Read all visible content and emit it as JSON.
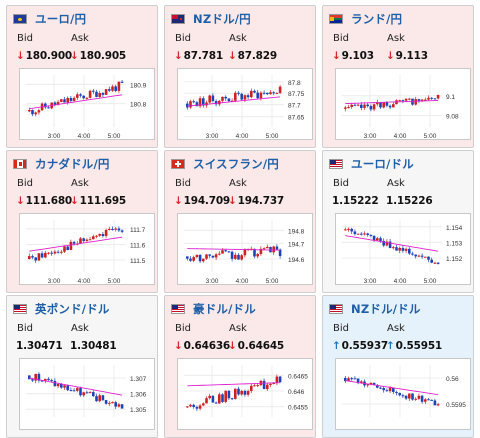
{
  "labels": {
    "bid": "Bid",
    "ask": "Ask"
  },
  "colors": {
    "up_candle": "#cc2222",
    "down_candle": "#1a44b8",
    "ma_line": "#e020d0",
    "down_arrow": "#d62828",
    "up_arrow": "#1e73be"
  },
  "cards": [
    {
      "pair": "ユーロ/円",
      "flag_icon": "eu-flag-icon",
      "trend": "down",
      "bid_arrow": "↓",
      "bid": "180.900",
      "ask_arrow": "↓",
      "ask": "180.905",
      "y_ticks": [
        "180.9",
        "180.8"
      ],
      "x_ticks": [
        "3:00",
        "4:00",
        "5:00"
      ]
    },
    {
      "pair": "NZドル/円",
      "flag_icon": "nz-flag-icon",
      "trend": "down",
      "bid_arrow": "↓",
      "bid": "87.781",
      "ask_arrow": "↓",
      "ask": "87.829",
      "y_ticks": [
        "87.8",
        "87.75",
        "87.7",
        "87.65"
      ],
      "x_ticks": [
        "3:00",
        "4:00",
        "5:00"
      ]
    },
    {
      "pair": "ランド/円",
      "flag_icon": "za-flag-icon",
      "trend": "down",
      "bid_arrow": "↓",
      "bid": "9.103",
      "ask_arrow": "↓",
      "ask": "9.113",
      "y_ticks": [
        "9.1",
        "9.08"
      ],
      "x_ticks": [
        "3:00",
        "4:00",
        "5:00"
      ]
    },
    {
      "pair": "カナダドル/円",
      "flag_icon": "ca-flag-icon",
      "trend": "down",
      "bid_arrow": "↓",
      "bid": "111.680",
      "ask_arrow": "↓",
      "ask": "111.695",
      "y_ticks": [
        "111.7",
        "111.6",
        "111.5"
      ],
      "x_ticks": [
        "3:00",
        "4:00",
        "5:00"
      ]
    },
    {
      "pair": "スイスフラン/円",
      "flag_icon": "ch-flag-icon",
      "trend": "down",
      "bid_arrow": "↓",
      "bid": "194.709",
      "ask_arrow": "↓",
      "ask": "194.737",
      "y_ticks": [
        "194.8",
        "194.7",
        "194.6"
      ],
      "x_ticks": [
        "3:00",
        "4:00",
        "5:00"
      ]
    },
    {
      "pair": "ユーロ/ドル",
      "flag_icon": "eu-us-flag-icon",
      "trend": "neutral",
      "bid_arrow": "",
      "bid": "1.15222",
      "ask_arrow": "",
      "ask": "1.15226",
      "y_ticks": [
        "1.154",
        "1.153",
        "1.152"
      ],
      "x_ticks": [
        "3:00",
        "4:00",
        "5:00"
      ]
    },
    {
      "pair": "英ポンド/ドル",
      "flag_icon": "gb-us-flag-icon",
      "trend": "neutral",
      "bid_arrow": "",
      "bid": "1.30471",
      "ask_arrow": "",
      "ask": "1.30481",
      "y_ticks": [
        "1.307",
        "1.306",
        "1.305"
      ],
      "x_ticks": []
    },
    {
      "pair": "豪ドル/ドル",
      "flag_icon": "au-us-flag-icon",
      "trend": "down",
      "bid_arrow": "↓",
      "bid": "0.64636",
      "ask_arrow": "↓",
      "ask": "0.64645",
      "y_ticks": [
        "0.6465",
        "0.646",
        "0.6455"
      ],
      "x_ticks": []
    },
    {
      "pair": "NZドル/ドル",
      "flag_icon": "nz-us-flag-icon",
      "trend": "up",
      "bid_arrow": "↑",
      "bid": "0.55937",
      "ask_arrow": "↑",
      "ask": "0.55951",
      "y_ticks": [
        "0.56",
        "0.5595"
      ],
      "x_ticks": []
    }
  ]
}
